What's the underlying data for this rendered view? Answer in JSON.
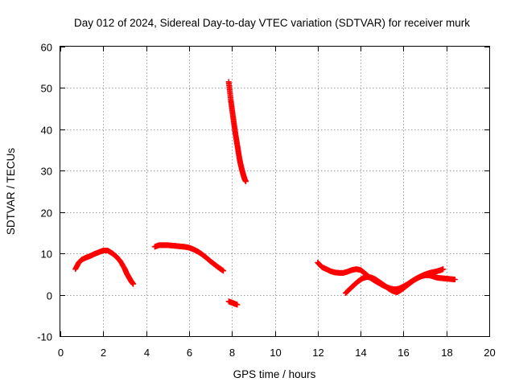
{
  "chart_data": {
    "type": "scatter",
    "title": "Day 012 of 2024, Sidereal Day-to-day VTEC variation (SDTVAR) for receiver murk",
    "xlabel": "GPS time / hours",
    "ylabel": "SDTVAR / TECUs",
    "xlim": [
      0,
      20
    ],
    "ylim": [
      -10,
      60
    ],
    "xticks": [
      0,
      2,
      4,
      6,
      8,
      10,
      12,
      14,
      16,
      18,
      20
    ],
    "yticks": [
      -10,
      0,
      10,
      20,
      30,
      40,
      50,
      60
    ],
    "grid": true,
    "marker": "plus",
    "color": "#ff0000",
    "series": [
      {
        "name": "SDTVAR",
        "segments": [
          {
            "x": [
              0.7,
              0.85,
              1.0,
              1.2,
              1.4,
              1.6,
              1.8,
              2.0,
              2.2,
              2.4,
              2.6,
              2.8,
              3.0,
              3.1,
              3.2,
              3.3,
              3.4
            ],
            "y": [
              6.2,
              7.7,
              8.5,
              9.0,
              9.4,
              9.9,
              10.3,
              10.7,
              10.7,
              10.1,
              9.3,
              8.1,
              6.3,
              5.1,
              4.2,
              3.3,
              2.6
            ]
          },
          {
            "x": [
              4.4,
              4.6,
              4.8,
              5.0,
              5.2,
              5.4,
              5.6,
              5.8,
              6.0,
              6.2,
              6.4,
              6.6,
              6.8,
              7.0,
              7.2,
              7.4,
              7.6
            ],
            "y": [
              11.6,
              12.0,
              12.0,
              12.0,
              11.9,
              11.8,
              11.7,
              11.6,
              11.4,
              11.0,
              10.5,
              9.8,
              9.0,
              8.1,
              7.3,
              6.5,
              5.8
            ]
          },
          {
            "x": [
              7.85,
              7.9,
              7.95,
              8.0,
              8.05,
              8.1,
              8.15,
              8.2,
              8.25,
              8.3,
              8.35,
              8.4,
              8.45,
              8.5,
              8.55,
              8.6,
              8.65
            ],
            "y": [
              51.5,
              49.3,
              47.0,
              45.1,
              43.2,
              41.3,
              39.5,
              37.8,
              36.2,
              34.6,
              33.0,
              31.7,
              30.6,
              29.6,
              28.7,
              27.9,
              27.4
            ]
          },
          {
            "x": [
              7.85,
              7.95,
              8.05,
              8.15,
              8.25
            ],
            "y": [
              -1.6,
              -1.8,
              -2.0,
              -2.2,
              -2.4
            ]
          },
          {
            "x": [
              12.0,
              12.2,
              12.4,
              12.6,
              12.8,
              13.0,
              13.2,
              13.4,
              13.6,
              13.8,
              14.0,
              14.2,
              14.4,
              14.6,
              14.8,
              15.0,
              15.2,
              15.4,
              15.6,
              15.8,
              16.0,
              16.2,
              16.4,
              16.6,
              16.8,
              17.0,
              17.2,
              17.4,
              17.6,
              17.8,
              18.0,
              18.2,
              18.4
            ],
            "y": [
              7.8,
              6.7,
              6.2,
              5.7,
              5.4,
              5.3,
              5.3,
              5.6,
              6.0,
              6.2,
              6.0,
              5.2,
              4.3,
              3.6,
              3.0,
              2.4,
              1.9,
              1.5,
              1.3,
              1.5,
              2.0,
              2.6,
              3.3,
              3.9,
              4.4,
              4.7,
              4.7,
              4.4,
              4.1,
              4.0,
              3.9,
              3.8,
              3.7
            ]
          },
          {
            "x": [
              13.3,
              13.5,
              13.7,
              13.9,
              14.1,
              14.3,
              14.5,
              14.7,
              14.9,
              15.1,
              15.3,
              15.5,
              15.7,
              15.9,
              16.1,
              16.3,
              16.5,
              16.7,
              16.9,
              17.1,
              17.3,
              17.5,
              17.7,
              17.85
            ],
            "y": [
              0.4,
              1.4,
              2.4,
              3.3,
              4.0,
              4.3,
              4.2,
              3.7,
              3.0,
              2.3,
              1.5,
              0.9,
              0.6,
              1.2,
              2.0,
              2.8,
              3.6,
              4.2,
              4.7,
              5.1,
              5.4,
              5.6,
              5.9,
              6.2
            ]
          }
        ]
      }
    ]
  }
}
